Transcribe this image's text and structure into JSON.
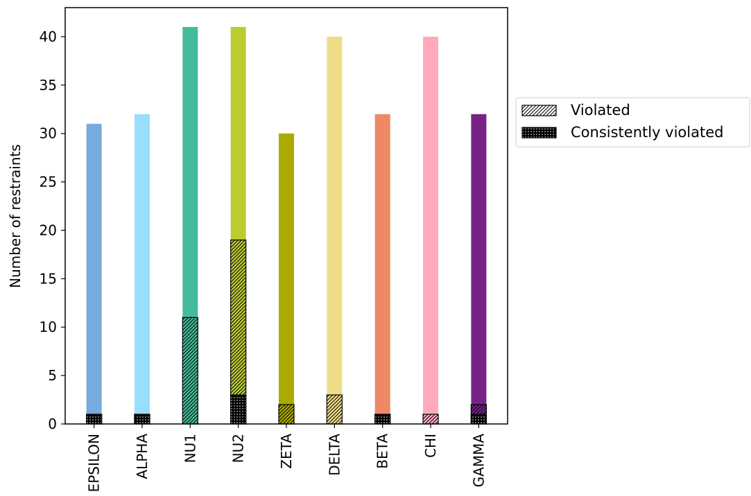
{
  "chart_data": {
    "type": "bar",
    "categories": [
      "EPSILON",
      "ALPHA",
      "NU1",
      "NU2",
      "ZETA",
      "DELTA",
      "BETA",
      "CHI",
      "GAMMA"
    ],
    "colors": [
      "#77AADD",
      "#99DDFF",
      "#44BB99",
      "#BBCC33",
      "#AAAA00",
      "#EEDD88",
      "#EE8866",
      "#FFAABB",
      "#772288"
    ],
    "series": [
      {
        "key": "total",
        "values": [
          31,
          32,
          41,
          41,
          30,
          40,
          32,
          40,
          32
        ]
      },
      {
        "key": "violated",
        "name": "Violated",
        "hatch": "diagonal",
        "values": [
          1,
          1,
          11,
          19,
          2,
          3,
          1,
          1,
          2
        ]
      },
      {
        "key": "consistent",
        "name": "Consistently violated",
        "hatch": "dots",
        "values": [
          1,
          1,
          0,
          3,
          0,
          0,
          1,
          0,
          1
        ]
      }
    ],
    "ylabel": "Number of restraints",
    "xlabel": "",
    "ylim": [
      0,
      43
    ],
    "yticks": [
      0,
      5,
      10,
      15,
      20,
      25,
      30,
      35,
      40
    ],
    "legend": {
      "placement": "right-outside",
      "entries": [
        "Violated",
        "Consistently violated"
      ]
    },
    "grid": false
  }
}
